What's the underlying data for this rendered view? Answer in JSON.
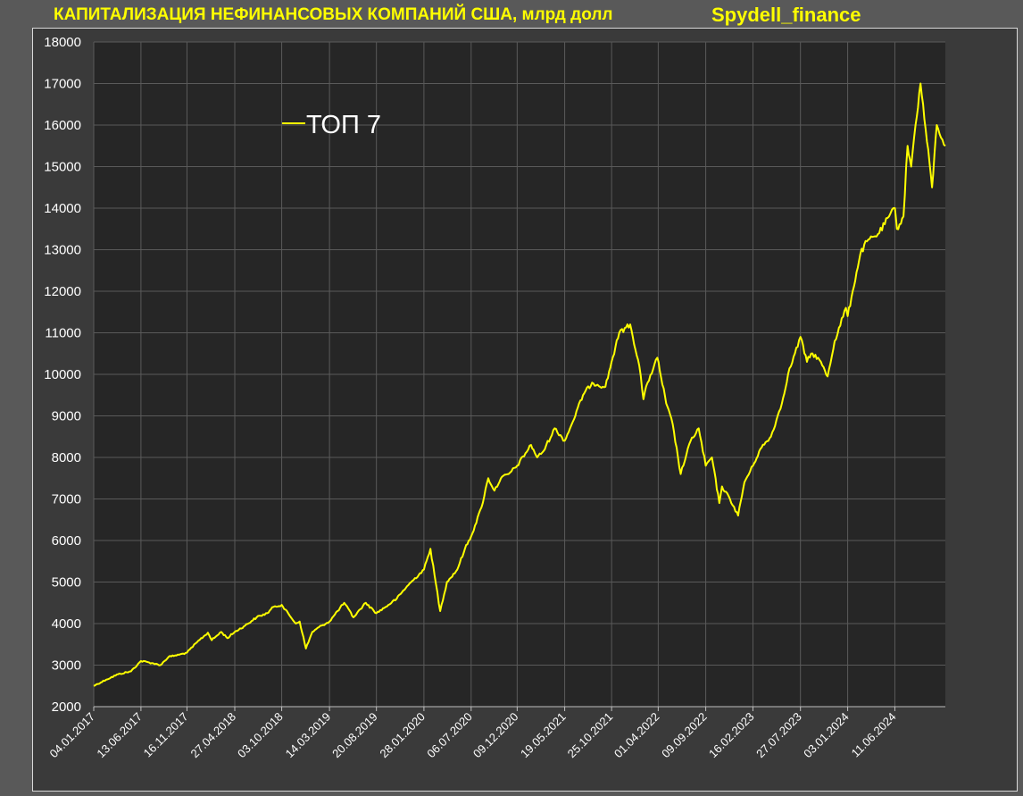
{
  "header": {
    "title": "КАПИТАЛИЗАЦИЯ НЕФИНАНСОВЫХ КОМПАНИЙ США, млрд долл",
    "brand": "Spydell_finance"
  },
  "colors": {
    "line": "#ffff00",
    "plot_background": "#262626",
    "panel_background": "#3a3a3a",
    "page_background": "#595959",
    "grid": "#5a5a5a",
    "text": "#ffffff",
    "title": "#ffff00"
  },
  "chart_data": {
    "type": "line",
    "title": "",
    "xlabel": "",
    "ylabel": "",
    "ylim": [
      2000,
      18000
    ],
    "yticks": [
      2000,
      3000,
      4000,
      5000,
      6000,
      7000,
      8000,
      9000,
      10000,
      11000,
      12000,
      13000,
      14000,
      15000,
      16000,
      17000,
      18000
    ],
    "xlim": [
      "2017-01-04",
      "2024-11-29"
    ],
    "xtick_labels": [
      "04.01.2017",
      "13.06.2017",
      "16.11.2017",
      "27.04.2018",
      "03.10.2018",
      "14.03.2019",
      "20.08.2019",
      "28.01.2020",
      "06.07.2020",
      "09.12.2020",
      "19.05.2021",
      "25.10.2021",
      "01.04.2022",
      "09.09.2022",
      "16.02.2023",
      "27.07.2023",
      "03.01.2024",
      "11.06.2024"
    ],
    "grid": true,
    "legend": {
      "position": "upper-left",
      "entries": [
        "ТОП 7"
      ]
    },
    "series": [
      {
        "name": "ТОП 7",
        "x": [
          "2017-01-04",
          "2017-02-15",
          "2017-03-28",
          "2017-05-10",
          "2017-06-13",
          "2017-07-20",
          "2017-08-18",
          "2017-09-15",
          "2017-10-20",
          "2017-11-16",
          "2017-12-20",
          "2018-01-26",
          "2018-02-08",
          "2018-03-12",
          "2018-04-02",
          "2018-04-27",
          "2018-06-01",
          "2018-07-10",
          "2018-08-15",
          "2018-09-05",
          "2018-10-03",
          "2018-10-29",
          "2018-11-20",
          "2018-12-03",
          "2018-12-24",
          "2019-01-15",
          "2019-02-15",
          "2019-03-14",
          "2019-04-10",
          "2019-05-03",
          "2019-06-03",
          "2019-07-15",
          "2019-08-20",
          "2019-09-20",
          "2019-10-28",
          "2019-12-02",
          "2020-01-28",
          "2020-02-19",
          "2020-03-23",
          "2020-04-15",
          "2020-05-20",
          "2020-06-15",
          "2020-07-06",
          "2020-08-10",
          "2020-09-02",
          "2020-09-23",
          "2020-10-15",
          "2020-11-10",
          "2020-12-09",
          "2021-01-25",
          "2021-02-15",
          "2021-03-08",
          "2021-04-15",
          "2021-05-19",
          "2021-06-15",
          "2021-07-20",
          "2021-08-20",
          "2021-09-07",
          "2021-10-04",
          "2021-10-25",
          "2021-11-20",
          "2021-12-27",
          "2022-01-27",
          "2022-02-10",
          "2022-02-24",
          "2022-03-29",
          "2022-04-28",
          "2022-05-20",
          "2022-06-16",
          "2022-07-20",
          "2022-08-16",
          "2022-09-09",
          "2022-09-30",
          "2022-10-25",
          "2022-11-03",
          "2022-11-30",
          "2022-12-28",
          "2023-01-18",
          "2023-02-16",
          "2023-03-13",
          "2023-04-18",
          "2023-05-25",
          "2023-06-15",
          "2023-07-27",
          "2023-08-18",
          "2023-09-01",
          "2023-09-25",
          "2023-10-27",
          "2023-11-20",
          "2023-12-28",
          "2024-01-03",
          "2024-01-20",
          "2024-02-15",
          "2024-03-08",
          "2024-04-19",
          "2024-05-22",
          "2024-06-11",
          "2024-06-18",
          "2024-07-10",
          "2024-07-24",
          "2024-08-05",
          "2024-08-20",
          "2024-09-06",
          "2024-10-15",
          "2024-10-31",
          "2024-11-29"
        ],
        "values": [
          2500,
          2650,
          2780,
          2850,
          3100,
          3050,
          3000,
          3200,
          3250,
          3300,
          3550,
          3780,
          3600,
          3800,
          3650,
          3800,
          3950,
          4150,
          4250,
          4400,
          4450,
          4200,
          4000,
          4050,
          3400,
          3800,
          3950,
          4050,
          4300,
          4500,
          4150,
          4500,
          4250,
          4400,
          4600,
          4900,
          5300,
          5800,
          4300,
          5000,
          5300,
          5800,
          6100,
          6800,
          7500,
          7200,
          7500,
          7600,
          7800,
          8300,
          8000,
          8150,
          8700,
          8400,
          8850,
          9500,
          9800,
          9750,
          9700,
          10300,
          11000,
          11200,
          10200,
          9400,
          9800,
          10400,
          9300,
          8800,
          7600,
          8400,
          8700,
          7800,
          8000,
          6900,
          7300,
          7000,
          6600,
          7400,
          7800,
          8200,
          8500,
          9300,
          10000,
          10900,
          10300,
          10500,
          10400,
          9950,
          10800,
          11600,
          11400,
          12000,
          12900,
          13200,
          13400,
          13800,
          14000,
          13500,
          13800,
          15500,
          15000,
          16000,
          17000,
          14500,
          16000,
          15500
        ]
      }
    ]
  }
}
